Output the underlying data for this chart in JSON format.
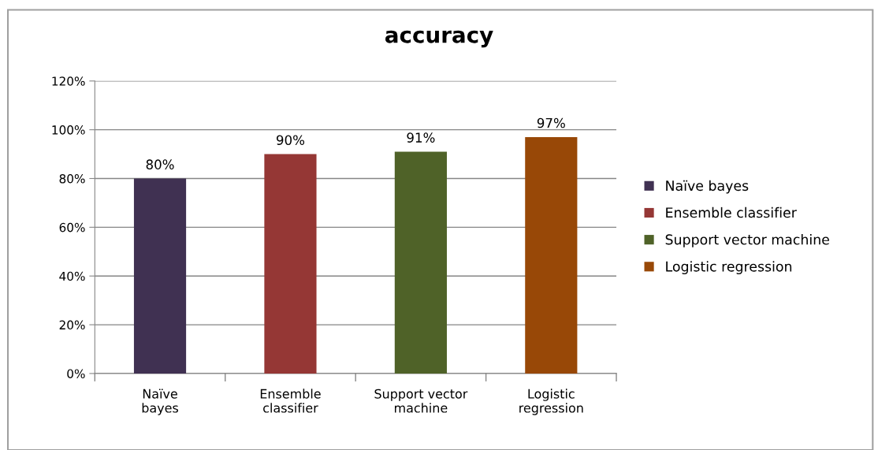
{
  "chart_data": {
    "type": "bar",
    "title": "accuracy",
    "categories": [
      "Naïve bayes",
      "Ensemble classifier",
      "Support vector machine",
      "Logistic regression"
    ],
    "series": [
      {
        "name": "Naïve bayes",
        "color": "#403152",
        "values": [
          80,
          null,
          null,
          null
        ],
        "value_labels": [
          "80%",
          null,
          null,
          null
        ]
      },
      {
        "name": "Ensemble classifier",
        "color": "#953735",
        "values": [
          null,
          90,
          null,
          null
        ],
        "value_labels": [
          null,
          "90%",
          null,
          null
        ]
      },
      {
        "name": "Support vector machine",
        "color": "#4f6228",
        "values": [
          null,
          null,
          91,
          null
        ],
        "value_labels": [
          null,
          null,
          "91%",
          null
        ]
      },
      {
        "name": "Logistic regression",
        "color": "#984807",
        "values": [
          null,
          null,
          null,
          97
        ],
        "value_labels": [
          null,
          null,
          null,
          "97%"
        ]
      }
    ],
    "ylim": [
      0,
      120
    ],
    "yticks": [
      {
        "value": 0,
        "label": "0%"
      },
      {
        "value": 20,
        "label": "20%"
      },
      {
        "value": 40,
        "label": "40%"
      },
      {
        "value": 60,
        "label": "60%"
      },
      {
        "value": 80,
        "label": "80%"
      },
      {
        "value": 100,
        "label": "100%"
      },
      {
        "value": 120,
        "label": "120%"
      }
    ],
    "grid": "y",
    "legend": "right"
  }
}
